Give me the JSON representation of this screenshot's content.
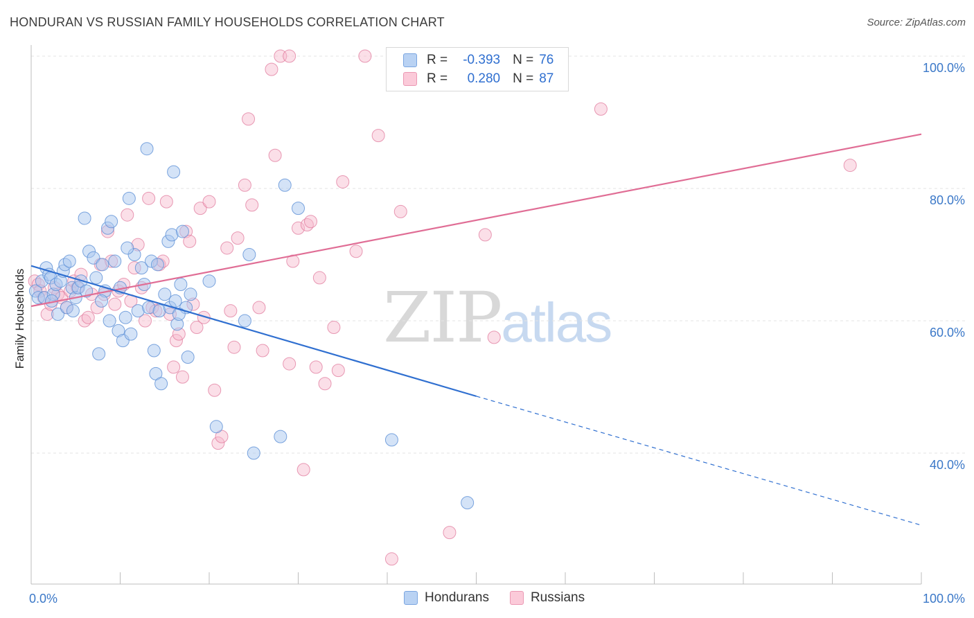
{
  "header": {
    "title": "HONDURAN VS RUSSIAN FAMILY HOUSEHOLDS CORRELATION CHART",
    "source": "Source: ZipAtlas.com"
  },
  "watermark": {
    "zip": "ZIP",
    "atlas": "atlas"
  },
  "legend": {
    "r_label": "R =",
    "n_label": "N =",
    "hondurans": {
      "r": "-0.393",
      "n": "76"
    },
    "russians": {
      "r": "0.280",
      "n": "87"
    }
  },
  "bottom_legend": {
    "hondurans": "Hondurans",
    "russians": "Russians"
  },
  "colors": {
    "hondurans_fill": "#a9c8f0",
    "hondurans_stroke": "#5b8fd6",
    "hondurans_line": "#2f6fd0",
    "russians_fill": "#f6b9cc",
    "russians_stroke": "#e07a9c",
    "russians_line": "#e06d95",
    "grid": "#e3e3e3",
    "axis_label": "#3b78c8"
  },
  "chart_data": {
    "type": "scatter",
    "title": "HONDURAN VS RUSSIAN FAMILY HOUSEHOLDS CORRELATION CHART",
    "xlabel": "",
    "ylabel": "Family Households",
    "xlim": [
      0,
      100
    ],
    "ylim": [
      20,
      104
    ],
    "x_tick_labels": [
      "0.0%",
      "100.0%"
    ],
    "y_ticks": [
      40,
      60,
      80,
      100
    ],
    "y_tick_labels": [
      "40.0%",
      "60.0%",
      "80.0%",
      "100.0%"
    ],
    "grid": true,
    "legend_position": "top-center",
    "series": [
      {
        "name": "Hondurans",
        "r": -0.393,
        "n": 76,
        "trend": {
          "x0": 0,
          "y0": 68.3,
          "x1": 50,
          "y1": 48.6,
          "dashed_to_x": 100,
          "dashed_to_y": 29.1
        },
        "points": [
          [
            0.5,
            64.5
          ],
          [
            0.8,
            63.5
          ],
          [
            1.2,
            66
          ],
          [
            1.5,
            63.5
          ],
          [
            1.7,
            68
          ],
          [
            2,
            67
          ],
          [
            2.2,
            66.5
          ],
          [
            2.5,
            64
          ],
          [
            2.8,
            65.5
          ],
          [
            3,
            61
          ],
          [
            3.3,
            66
          ],
          [
            3.6,
            67.5
          ],
          [
            3.8,
            68.5
          ],
          [
            4,
            62
          ],
          [
            4.3,
            69
          ],
          [
            4.6,
            65
          ],
          [
            5,
            63.5
          ],
          [
            5.3,
            65
          ],
          [
            5.6,
            66
          ],
          [
            6,
            75.5
          ],
          [
            6.5,
            70.5
          ],
          [
            7,
            69.5
          ],
          [
            7.3,
            66.5
          ],
          [
            7.6,
            55
          ],
          [
            8,
            68.5
          ],
          [
            8.3,
            64.5
          ],
          [
            8.6,
            74
          ],
          [
            8.8,
            60
          ],
          [
            9,
            75
          ],
          [
            9.4,
            69
          ],
          [
            9.8,
            58.5
          ],
          [
            10,
            65
          ],
          [
            10.3,
            57
          ],
          [
            10.6,
            60.5
          ],
          [
            11,
            78.5
          ],
          [
            11.2,
            58
          ],
          [
            11.6,
            70
          ],
          [
            12,
            61.5
          ],
          [
            12.4,
            68
          ],
          [
            12.7,
            65.5
          ],
          [
            13,
            86
          ],
          [
            13.2,
            62
          ],
          [
            13.5,
            69
          ],
          [
            13.8,
            55.5
          ],
          [
            14,
            52
          ],
          [
            14.2,
            68.5
          ],
          [
            14.4,
            61.5
          ],
          [
            14.6,
            50.5
          ],
          [
            15,
            64
          ],
          [
            15.4,
            72
          ],
          [
            15.6,
            62
          ],
          [
            15.8,
            73
          ],
          [
            16,
            82.5
          ],
          [
            16.2,
            63
          ],
          [
            16.4,
            59.5
          ],
          [
            16.8,
            65.5
          ],
          [
            17,
            73.5
          ],
          [
            17.4,
            62
          ],
          [
            17.6,
            54.5
          ],
          [
            17.9,
            64
          ],
          [
            20,
            66
          ],
          [
            20.8,
            44
          ],
          [
            24,
            60
          ],
          [
            24.5,
            70
          ],
          [
            25,
            40
          ],
          [
            28,
            42.5
          ],
          [
            28.5,
            80.5
          ],
          [
            30,
            77
          ],
          [
            40.5,
            42
          ],
          [
            49,
            32.5
          ],
          [
            2.3,
            63
          ],
          [
            6.2,
            64.5
          ],
          [
            4.7,
            61.5
          ],
          [
            10.8,
            71
          ],
          [
            7.9,
            63
          ],
          [
            16.6,
            61
          ]
        ]
      },
      {
        "name": "Russians",
        "r": 0.28,
        "n": 87,
        "trend": {
          "x0": 0,
          "y0": 62.2,
          "x1": 100,
          "y1": 88.2
        },
        "points": [
          [
            0.4,
            66
          ],
          [
            0.8,
            65.5
          ],
          [
            1,
            64.5
          ],
          [
            1.4,
            63.5
          ],
          [
            1.8,
            61
          ],
          [
            2.2,
            62.5
          ],
          [
            2.6,
            65
          ],
          [
            3,
            64
          ],
          [
            3.4,
            63.5
          ],
          [
            4,
            62
          ],
          [
            4.4,
            64.5
          ],
          [
            4.8,
            66
          ],
          [
            5.2,
            65
          ],
          [
            5.6,
            67
          ],
          [
            6,
            60
          ],
          [
            6.4,
            60.5
          ],
          [
            6.8,
            64
          ],
          [
            7.4,
            62
          ],
          [
            7.8,
            68.5
          ],
          [
            8.2,
            64
          ],
          [
            8.6,
            73.5
          ],
          [
            9,
            69
          ],
          [
            9.4,
            62.5
          ],
          [
            9.8,
            64.5
          ],
          [
            10.4,
            65.5
          ],
          [
            10.8,
            76
          ],
          [
            11.2,
            63
          ],
          [
            11.6,
            68
          ],
          [
            12,
            71.5
          ],
          [
            12.4,
            65
          ],
          [
            12.8,
            60
          ],
          [
            13.2,
            78.5
          ],
          [
            13.6,
            62
          ],
          [
            14,
            61.5
          ],
          [
            14.4,
            68.5
          ],
          [
            14.8,
            69
          ],
          [
            15.2,
            78
          ],
          [
            15.6,
            61
          ],
          [
            16,
            53
          ],
          [
            16.3,
            57
          ],
          [
            16.6,
            58
          ],
          [
            17,
            51.5
          ],
          [
            17.4,
            73.5
          ],
          [
            17.8,
            72
          ],
          [
            18.2,
            62.5
          ],
          [
            18.6,
            59
          ],
          [
            19,
            77
          ],
          [
            19.4,
            60.5
          ],
          [
            20,
            78
          ],
          [
            20.6,
            49.5
          ],
          [
            21,
            41.5
          ],
          [
            21.4,
            42.5
          ],
          [
            22,
            71
          ],
          [
            22.4,
            61.5
          ],
          [
            22.8,
            56
          ],
          [
            23.2,
            72.5
          ],
          [
            24,
            80.5
          ],
          [
            24.4,
            90.5
          ],
          [
            24.8,
            77.5
          ],
          [
            25.6,
            62
          ],
          [
            26,
            55.5
          ],
          [
            27,
            98
          ],
          [
            27.4,
            85
          ],
          [
            28,
            100
          ],
          [
            29,
            53.5
          ],
          [
            29.4,
            69
          ],
          [
            30,
            74
          ],
          [
            30.6,
            37.5
          ],
          [
            31,
            74.5
          ],
          [
            31.4,
            75
          ],
          [
            32,
            53
          ],
          [
            32.4,
            66.5
          ],
          [
            33,
            50.5
          ],
          [
            34,
            59
          ],
          [
            34.5,
            52.5
          ],
          [
            35,
            81
          ],
          [
            36.5,
            70.5
          ],
          [
            37.5,
            100
          ],
          [
            39,
            88
          ],
          [
            40.5,
            24
          ],
          [
            41.5,
            76.5
          ],
          [
            47,
            28
          ],
          [
            51,
            73
          ],
          [
            52,
            57.5
          ],
          [
            64,
            92
          ],
          [
            92,
            83.5
          ],
          [
            29,
            100
          ]
        ]
      }
    ]
  }
}
